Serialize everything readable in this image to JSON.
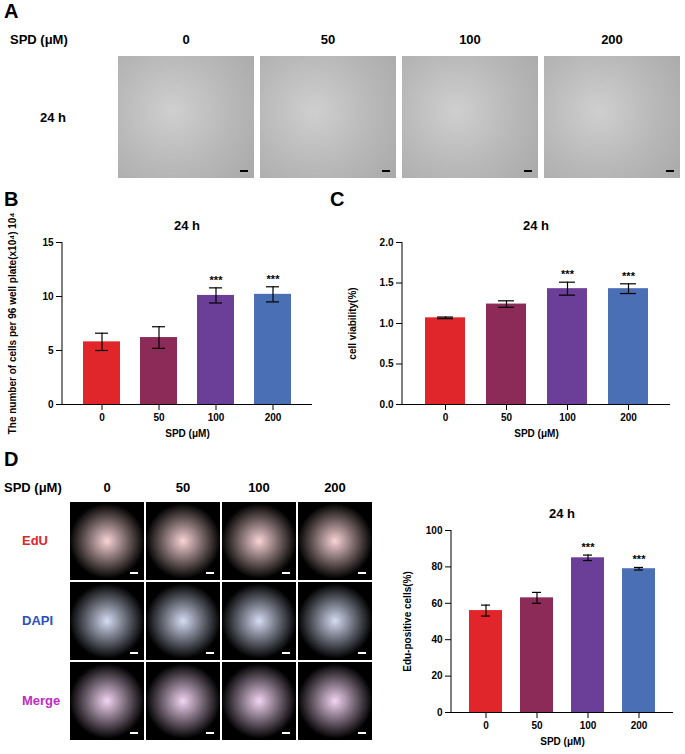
{
  "panel_labels": [
    "A",
    "B",
    "C",
    "D"
  ],
  "image_panels": {
    "A": {
      "row_title": "SPD (μM)",
      "columns": [
        "0",
        "50",
        "100",
        "200"
      ],
      "rows": [
        {
          "label": "24 h",
          "color": "#000000"
        }
      ]
    },
    "D": {
      "row_title": "SPD (μM)",
      "columns": [
        "0",
        "50",
        "100",
        "200"
      ],
      "rows": [
        {
          "label": "EdU",
          "color": "#e0262b"
        },
        {
          "label": "DAPI",
          "color": "#2b4fc4"
        },
        {
          "label": "Merge",
          "color": "#c22bc4"
        }
      ]
    }
  },
  "chart_data": [
    {
      "type": "bar",
      "title": "24 h",
      "x_label": "SPD (μM)",
      "y_label": "The number of cells per 96 well plate(x10⁴) 10⁴",
      "categories": [
        "0",
        "50",
        "100",
        "200"
      ],
      "values": [
        5.8,
        6.2,
        10.1,
        10.2
      ],
      "errors": [
        0.8,
        1.0,
        0.7,
        0.7
      ],
      "colors": [
        "#e0262b",
        "#8c2b58",
        "#6b3f97",
        "#4a6fb5"
      ],
      "ylim": [
        0,
        15
      ],
      "yticks": [
        0,
        5,
        10,
        15
      ],
      "annotations": [
        {
          "category": "100",
          "text": "***"
        },
        {
          "category": "200",
          "text": "***"
        }
      ]
    },
    {
      "type": "bar",
      "title": "24 h",
      "x_label": "SPD (μM)",
      "y_label": "cell viability(%)",
      "categories": [
        "0",
        "50",
        "100",
        "200"
      ],
      "values": [
        1.07,
        1.24,
        1.43,
        1.43
      ],
      "errors": [
        0.01,
        0.04,
        0.08,
        0.06
      ],
      "colors": [
        "#e0262b",
        "#8c2b58",
        "#6b3f97",
        "#4a6fb5"
      ],
      "ylim": [
        0,
        2
      ],
      "yticks": [
        {
          "value": 0,
          "label": "0.0"
        },
        {
          "value": 0.5,
          "label": "0.5"
        },
        {
          "value": 1,
          "label": "1.0"
        },
        {
          "value": 1.5,
          "label": "1.5"
        },
        {
          "value": 2,
          "label": "2.0"
        }
      ],
      "annotations": [
        {
          "category": "100",
          "text": "***"
        },
        {
          "category": "200",
          "text": "***"
        }
      ]
    },
    {
      "type": "bar",
      "title": "24 h",
      "x_label": "SPD (μM)",
      "y_label": "Edu-positive cells(%)",
      "categories": [
        "0",
        "50",
        "100",
        "200"
      ],
      "values": [
        56,
        63,
        85,
        79
      ],
      "errors": [
        3,
        3,
        1.5,
        0.7
      ],
      "colors": [
        "#e0262b",
        "#8c2b58",
        "#6b3f97",
        "#4a6fb5"
      ],
      "ylim": [
        0,
        100
      ],
      "yticks": [
        0,
        20,
        40,
        60,
        80,
        100
      ],
      "annotations": [
        {
          "category": "100",
          "text": "***"
        },
        {
          "category": "200",
          "text": "***"
        }
      ]
    }
  ]
}
